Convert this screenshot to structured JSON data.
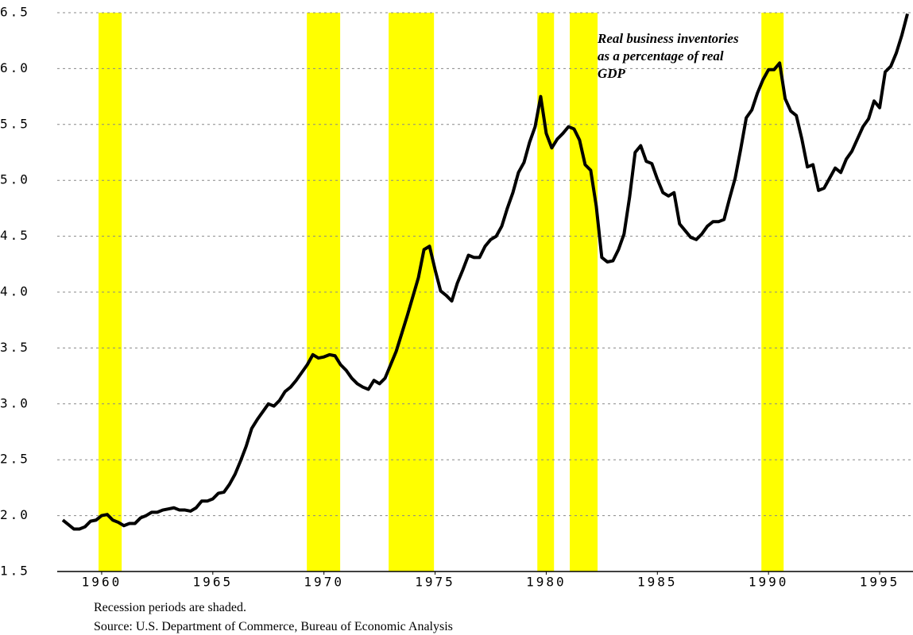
{
  "chart_data": {
    "type": "line",
    "annotation": [
      "Real business inventories",
      "as a percentage of real",
      "GDP"
    ],
    "notes": [
      "Recession periods are shaded.",
      "Source: U.S. Department of Commerce, Bureau of Economic Analysis"
    ],
    "xlim": [
      1958,
      1996.5
    ],
    "ylim": [
      1.5,
      6.5
    ],
    "xticks": [
      1960,
      1965,
      1970,
      1975,
      1980,
      1985,
      1990,
      1995
    ],
    "yticks": [
      1.5,
      {
        "value": 2,
        "label": "2.0"
      },
      2.5,
      {
        "value": 3,
        "label": "3.0"
      },
      3.5,
      {
        "value": 4,
        "label": "4.0"
      },
      4.5,
      {
        "value": 5,
        "label": "5.0"
      },
      5.5,
      {
        "value": 6,
        "label": "6.0"
      },
      6.5
    ],
    "grid": true,
    "line_color": "#000000",
    "recession_color": "#ffff00",
    "recessions": [
      [
        1959.86,
        1960.9
      ],
      [
        1969.23,
        1970.73
      ],
      [
        1972.91,
        1974.95
      ],
      [
        1979.6,
        1980.35
      ],
      [
        1981.06,
        1982.31
      ],
      [
        1989.68,
        1990.68
      ]
    ],
    "x": [
      1958.25,
      1958.5,
      1958.75,
      1959,
      1959.25,
      1959.5,
      1959.75,
      1960,
      1960.25,
      1960.5,
      1960.75,
      1961,
      1961.25,
      1961.5,
      1961.75,
      1962,
      1962.25,
      1962.5,
      1962.75,
      1963,
      1963.25,
      1963.5,
      1963.75,
      1964,
      1964.25,
      1964.5,
      1964.75,
      1965,
      1965.25,
      1965.5,
      1965.75,
      1966,
      1966.25,
      1966.5,
      1966.75,
      1967,
      1967.25,
      1967.5,
      1967.75,
      1968,
      1968.25,
      1968.5,
      1968.75,
      1969,
      1969.25,
      1969.5,
      1969.75,
      1970,
      1970.25,
      1970.5,
      1970.75,
      1971,
      1971.25,
      1971.5,
      1971.75,
      1972,
      1972.25,
      1972.5,
      1972.75,
      1973,
      1973.25,
      1973.5,
      1973.75,
      1974,
      1974.25,
      1974.5,
      1974.75,
      1975,
      1975.25,
      1975.5,
      1975.75,
      1976,
      1976.25,
      1976.5,
      1976.75,
      1977,
      1977.25,
      1977.5,
      1977.75,
      1978,
      1978.25,
      1978.5,
      1978.75,
      1979,
      1979.25,
      1979.5,
      1979.75,
      1980,
      1980.25,
      1980.5,
      1980.75,
      1981,
      1981.25,
      1981.5,
      1981.75,
      1982,
      1982.25,
      1982.5,
      1982.75,
      1983,
      1983.25,
      1983.5,
      1983.75,
      1984,
      1984.25,
      1984.5,
      1984.75,
      1985,
      1985.25,
      1985.5,
      1985.75,
      1986,
      1986.25,
      1986.5,
      1986.75,
      1987,
      1987.25,
      1987.5,
      1987.75,
      1988,
      1988.25,
      1988.5,
      1988.75,
      1989,
      1989.25,
      1989.5,
      1989.75,
      1990,
      1990.25,
      1990.5,
      1990.75,
      1991,
      1991.25,
      1991.5,
      1991.75,
      1992,
      1992.25,
      1992.5,
      1992.75,
      1993,
      1993.25,
      1993.5,
      1993.75,
      1994,
      1994.25,
      1994.5,
      1994.75,
      1995,
      1995.25,
      1995.5,
      1995.75,
      1996,
      1996.25
    ],
    "values": [
      1.96,
      1.92,
      1.88,
      1.88,
      1.9,
      1.95,
      1.96,
      2.0,
      2.01,
      1.96,
      1.94,
      1.91,
      1.93,
      1.93,
      1.98,
      2.0,
      2.03,
      2.03,
      2.05,
      2.06,
      2.07,
      2.05,
      2.05,
      2.04,
      2.07,
      2.13,
      2.13,
      2.15,
      2.2,
      2.21,
      2.28,
      2.37,
      2.49,
      2.62,
      2.78,
      2.86,
      2.93,
      3.0,
      2.98,
      3.03,
      3.11,
      3.15,
      3.21,
      3.28,
      3.35,
      3.44,
      3.41,
      3.42,
      3.44,
      3.43,
      3.35,
      3.3,
      3.23,
      3.18,
      3.15,
      3.13,
      3.21,
      3.18,
      3.23,
      3.35,
      3.47,
      3.63,
      3.79,
      3.96,
      4.13,
      4.38,
      4.41,
      4.2,
      4.01,
      3.97,
      3.92,
      4.08,
      4.2,
      4.33,
      4.31,
      4.31,
      4.41,
      4.47,
      4.5,
      4.59,
      4.75,
      4.89,
      5.07,
      5.16,
      5.34,
      5.48,
      5.75,
      5.42,
      5.29,
      5.37,
      5.42,
      5.48,
      5.46,
      5.36,
      5.14,
      5.09,
      4.77,
      4.31,
      4.27,
      4.28,
      4.38,
      4.52,
      4.85,
      5.25,
      5.31,
      5.17,
      5.15,
      5.01,
      4.89,
      4.86,
      4.89,
      4.61,
      4.55,
      4.49,
      4.47,
      4.52,
      4.59,
      4.63,
      4.63,
      4.65,
      4.84,
      5.02,
      5.28,
      5.56,
      5.63,
      5.78,
      5.9,
      5.99,
      5.99,
      6.05,
      5.73,
      5.62,
      5.58,
      5.37,
      5.12,
      5.14,
      4.91,
      4.93,
      5.02,
      5.11,
      5.07,
      5.19,
      5.26,
      5.37,
      5.48,
      5.55,
      5.71,
      5.65,
      5.97,
      6.02,
      6.14,
      6.3,
      6.49
    ]
  }
}
